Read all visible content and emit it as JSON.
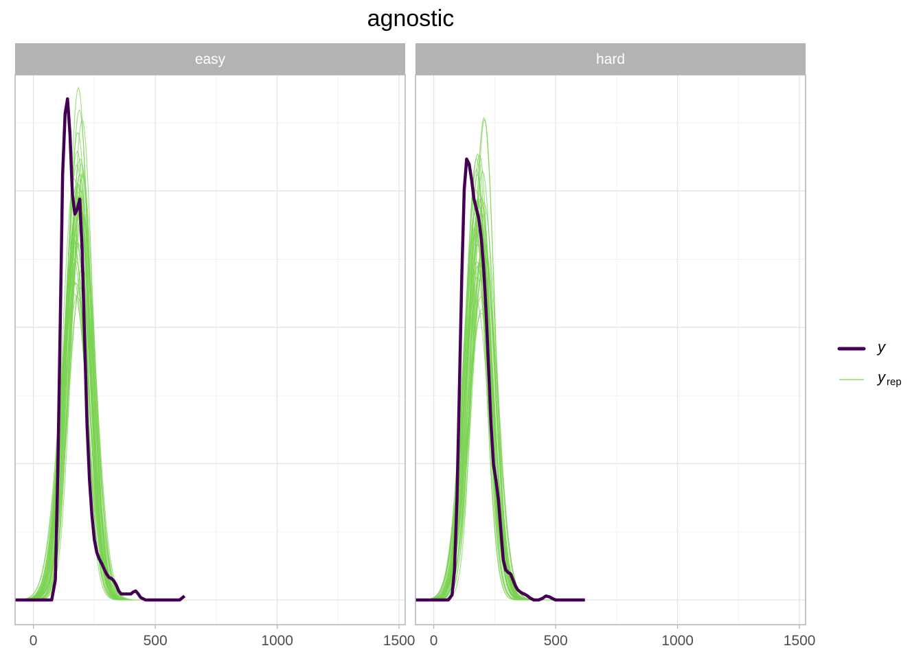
{
  "title": "agnostic",
  "colors": {
    "y": "#440154",
    "yrep": "#7ad151",
    "strip_bg": "#b3b3b3",
    "strip_text": "#ffffff",
    "grid": "#e5e5e5",
    "border": "#b3b3b3"
  },
  "legend": {
    "y_label": "y",
    "yrep_label": "y",
    "yrep_sub": "rep"
  },
  "chart_data": {
    "type": "line",
    "title": "agnostic",
    "xlabel": "",
    "ylabel": "",
    "xlim": [
      -75,
      1525
    ],
    "ylim": [
      0,
      1
    ],
    "x_ticks": [
      0,
      500,
      1000,
      1500
    ],
    "grid": true,
    "legend_position": "right",
    "panels": [
      {
        "label": "easy",
        "y": {
          "points": [
            [
              -75,
              0
            ],
            [
              75,
              0
            ],
            [
              90,
              0.04
            ],
            [
              100,
              0.25
            ],
            [
              110,
              0.55
            ],
            [
              120,
              0.85
            ],
            [
              130,
              0.97
            ],
            [
              140,
              1.0
            ],
            [
              150,
              0.93
            ],
            [
              160,
              0.81
            ],
            [
              170,
              0.77
            ],
            [
              180,
              0.78
            ],
            [
              190,
              0.8
            ],
            [
              200,
              0.7
            ],
            [
              210,
              0.52
            ],
            [
              220,
              0.35
            ],
            [
              230,
              0.24
            ],
            [
              240,
              0.17
            ],
            [
              250,
              0.12
            ],
            [
              260,
              0.095
            ],
            [
              270,
              0.082
            ],
            [
              280,
              0.073
            ],
            [
              290,
              0.062
            ],
            [
              300,
              0.052
            ],
            [
              310,
              0.045
            ],
            [
              320,
              0.043
            ],
            [
              330,
              0.038
            ],
            [
              340,
              0.03
            ],
            [
              350,
              0.018
            ],
            [
              360,
              0.012
            ],
            [
              370,
              0.012
            ],
            [
              380,
              0.012
            ],
            [
              390,
              0.012
            ],
            [
              400,
              0.012
            ],
            [
              410,
              0.016
            ],
            [
              420,
              0.018
            ],
            [
              430,
              0.012
            ],
            [
              440,
              0.005
            ],
            [
              460,
              0.0
            ],
            [
              600,
              0.0
            ],
            [
              620,
              0.008
            ]
          ]
        },
        "yrep": {
          "center": 185,
          "sd": 52,
          "peak": 0.81,
          "n_draws": 40
        }
      },
      {
        "label": "hard",
        "y": {
          "points": [
            [
              -75,
              0
            ],
            [
              60,
              0
            ],
            [
              75,
              0.01
            ],
            [
              85,
              0.06
            ],
            [
              95,
              0.2
            ],
            [
              105,
              0.42
            ],
            [
              115,
              0.65
            ],
            [
              125,
              0.82
            ],
            [
              135,
              0.88
            ],
            [
              145,
              0.87
            ],
            [
              155,
              0.84
            ],
            [
              165,
              0.8
            ],
            [
              175,
              0.78
            ],
            [
              185,
              0.76
            ],
            [
              195,
              0.72
            ],
            [
              205,
              0.66
            ],
            [
              215,
              0.57
            ],
            [
              225,
              0.46
            ],
            [
              235,
              0.35
            ],
            [
              245,
              0.27
            ],
            [
              255,
              0.24
            ],
            [
              265,
              0.2
            ],
            [
              275,
              0.14
            ],
            [
              285,
              0.08
            ],
            [
              295,
              0.06
            ],
            [
              305,
              0.055
            ],
            [
              315,
              0.052
            ],
            [
              325,
              0.04
            ],
            [
              335,
              0.028
            ],
            [
              345,
              0.02
            ],
            [
              355,
              0.016
            ],
            [
              365,
              0.013
            ],
            [
              375,
              0.011
            ],
            [
              385,
              0.008
            ],
            [
              395,
              0.004
            ],
            [
              410,
              0.0
            ],
            [
              430,
              0.0
            ],
            [
              445,
              0.003
            ],
            [
              460,
              0.008
            ],
            [
              475,
              0.006
            ],
            [
              490,
              0.002
            ],
            [
              500,
              0.0
            ],
            [
              620,
              0.0
            ]
          ]
        },
        "yrep": {
          "center": 190,
          "sd": 50,
          "peak": 0.8,
          "n_draws": 40
        }
      }
    ]
  }
}
